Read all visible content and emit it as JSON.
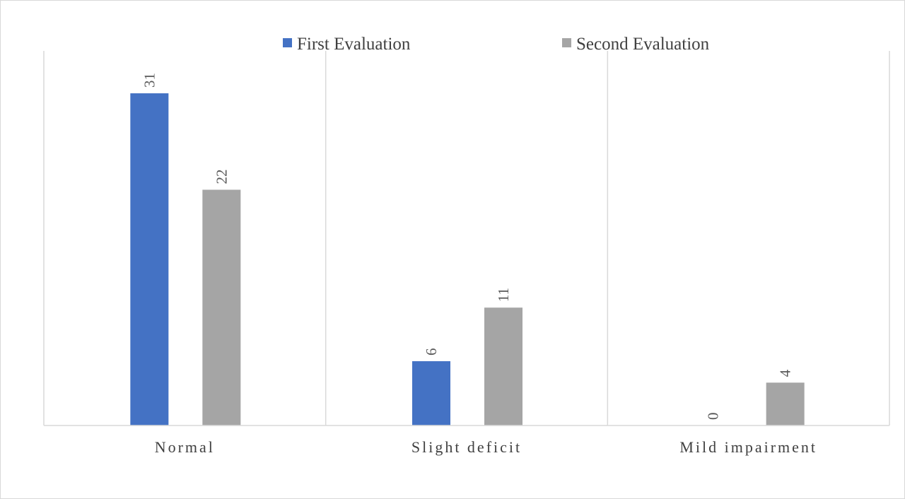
{
  "chart_data": {
    "type": "bar",
    "categories": [
      "Normal",
      "Slight deficit",
      "Mild impairment"
    ],
    "series": [
      {
        "name": "First Evaluation",
        "values": [
          31,
          6,
          0
        ],
        "color": "#4472c4"
      },
      {
        "name": "Second Evaluation",
        "values": [
          22,
          11,
          4
        ],
        "color": "#a5a5a5"
      }
    ],
    "title": "",
    "xlabel": "",
    "ylabel": "",
    "ylim": [
      0,
      35
    ],
    "grid": "vertical category separators",
    "legend": "top-center",
    "data_labels": "rotated, above bars"
  },
  "colors": {
    "axis": "#d9d9d9",
    "text": "#404040"
  }
}
